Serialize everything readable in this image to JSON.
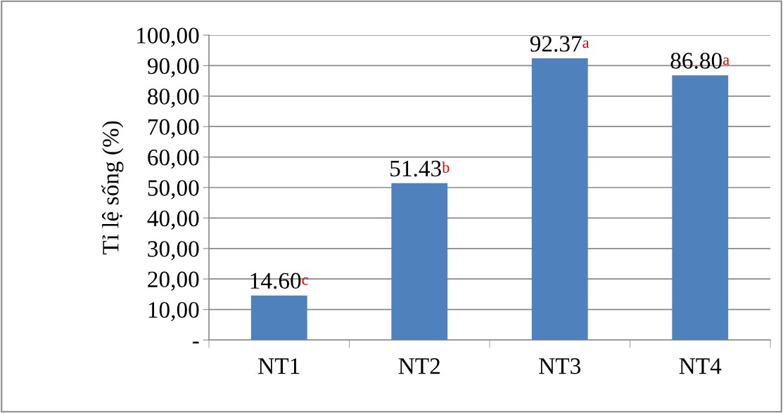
{
  "chart_data": {
    "type": "bar",
    "ylabel": "Tỉ lệ sống (%)",
    "categories": [
      "NT1",
      "NT2",
      "NT3",
      "NT4"
    ],
    "values": [
      14.6,
      51.43,
      92.37,
      86.8
    ],
    "color": "#4f81bd",
    "value_labels": [
      "14.60",
      "51.43",
      "92.37",
      "86.80"
    ],
    "annotations": [
      {
        "text": "c",
        "x": "NT1",
        "y": 14.6
      },
      {
        "text": "b",
        "x": "NT2",
        "y": 51.43
      },
      {
        "text": "a",
        "x": "NT3",
        "y": 92.37
      },
      {
        "text": "a",
        "x": "NT4",
        "y": 86.8
      }
    ],
    "ylim": [
      0,
      100
    ],
    "yticks": [
      {
        "value": 0,
        "label": "-"
      },
      {
        "value": 10,
        "label": "10,00"
      },
      {
        "value": 20,
        "label": "20,00"
      },
      {
        "value": 30,
        "label": "30,00"
      },
      {
        "value": 40,
        "label": "40,00"
      },
      {
        "value": 50,
        "label": "50,00"
      },
      {
        "value": 60,
        "label": "60,00"
      },
      {
        "value": 70,
        "label": "70,00"
      },
      {
        "value": 80,
        "label": "80,00"
      },
      {
        "value": 90,
        "label": "90,00"
      },
      {
        "value": 100,
        "label": "100,00"
      }
    ],
    "grid": "y"
  }
}
